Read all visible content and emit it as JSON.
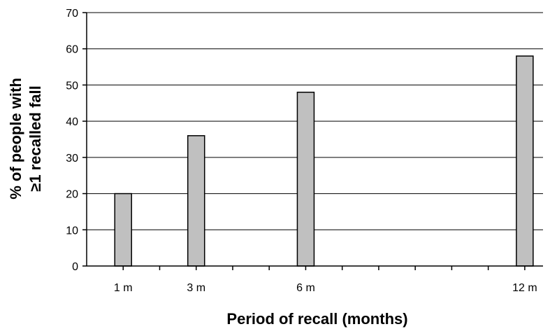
{
  "chart_data": {
    "type": "bar",
    "categories": [
      "1 m",
      "3 m",
      "6 m",
      "12 m"
    ],
    "x": [
      1,
      3,
      6,
      12
    ],
    "values": [
      20,
      36,
      48,
      58
    ],
    "xlabel": "Period of recall (months)",
    "ylabel_lines": [
      "% of people with",
      "≥1 recalled fall"
    ],
    "ylim": [
      0,
      70
    ],
    "xlim": [
      0,
      12.5
    ],
    "yticks": [
      0,
      10,
      20,
      30,
      40,
      50,
      60,
      70
    ],
    "grid": "horizontal",
    "bar_color": "#c0c0c0",
    "bar_edge_color": "#000000",
    "grid_color": "#000000"
  }
}
